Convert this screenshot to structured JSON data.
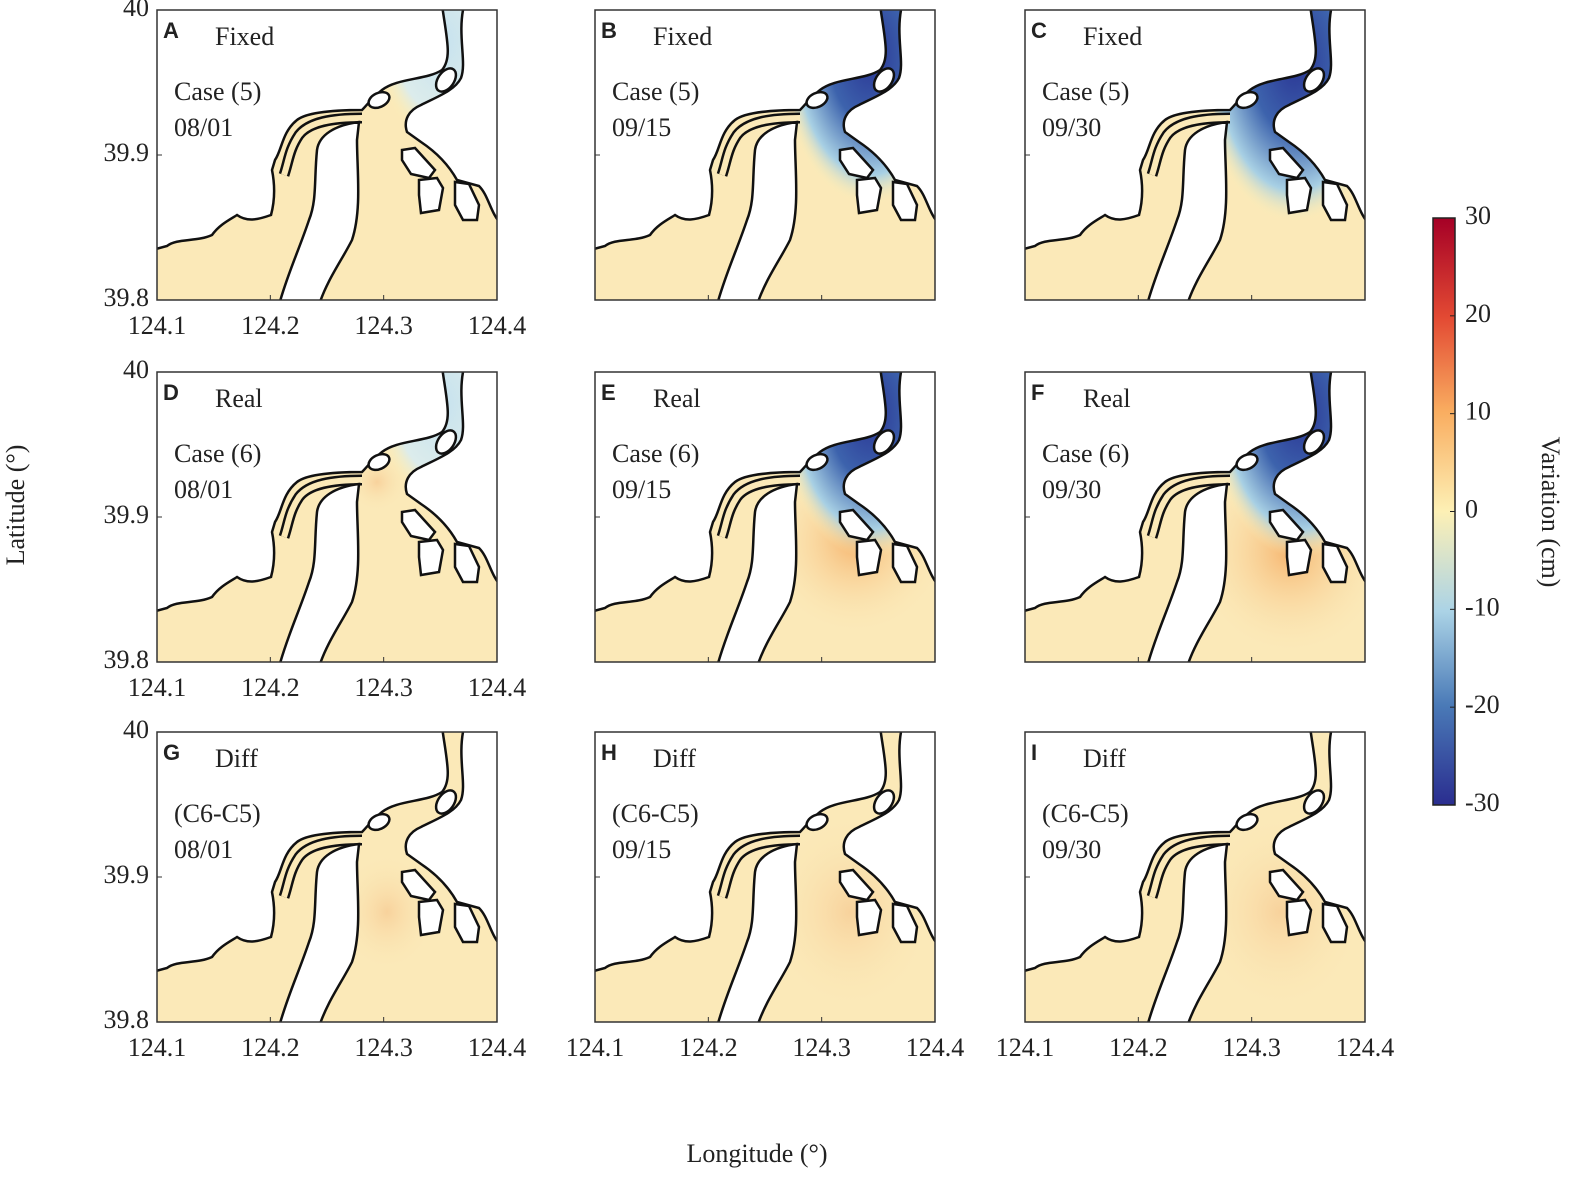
{
  "xlabel": "Longitude (°)",
  "ylabel": "Latitude (°)",
  "xlim": [
    124.1,
    124.4
  ],
  "ylim": [
    39.8,
    40
  ],
  "xticks": [
    124.1,
    124.2,
    124.3,
    124.4
  ],
  "yticks": [
    39.8,
    39.9,
    40
  ],
  "panels": [
    {
      "letter": "A",
      "label": "Fixed",
      "lines": [
        "Case (5)",
        "08/01"
      ]
    },
    {
      "letter": "B",
      "label": "Fixed",
      "lines": [
        "Case (5)",
        "09/15"
      ]
    },
    {
      "letter": "C",
      "label": "Fixed",
      "lines": [
        "Case (5)",
        "09/30"
      ]
    },
    {
      "letter": "D",
      "label": "Real",
      "lines": [
        "Case (6)",
        "08/01"
      ]
    },
    {
      "letter": "E",
      "label": "Real",
      "lines": [
        "Case (6)",
        "09/15"
      ]
    },
    {
      "letter": "F",
      "label": "Real",
      "lines": [
        "Case (6)",
        "09/30"
      ]
    },
    {
      "letter": "G",
      "label": "Diff",
      "lines": [
        "(C6-C5)",
        "08/01"
      ]
    },
    {
      "letter": "H",
      "label": "Diff",
      "lines": [
        "(C6-C5)",
        "09/15"
      ]
    },
    {
      "letter": "I",
      "label": "Diff",
      "lines": [
        "(C6-C5)",
        "09/30"
      ]
    }
  ],
  "colorbar": {
    "label": "Variation (cm)",
    "lim": [
      -30,
      30
    ],
    "ticks": [
      30,
      20,
      10,
      0,
      -10,
      -20,
      -30
    ]
  }
}
